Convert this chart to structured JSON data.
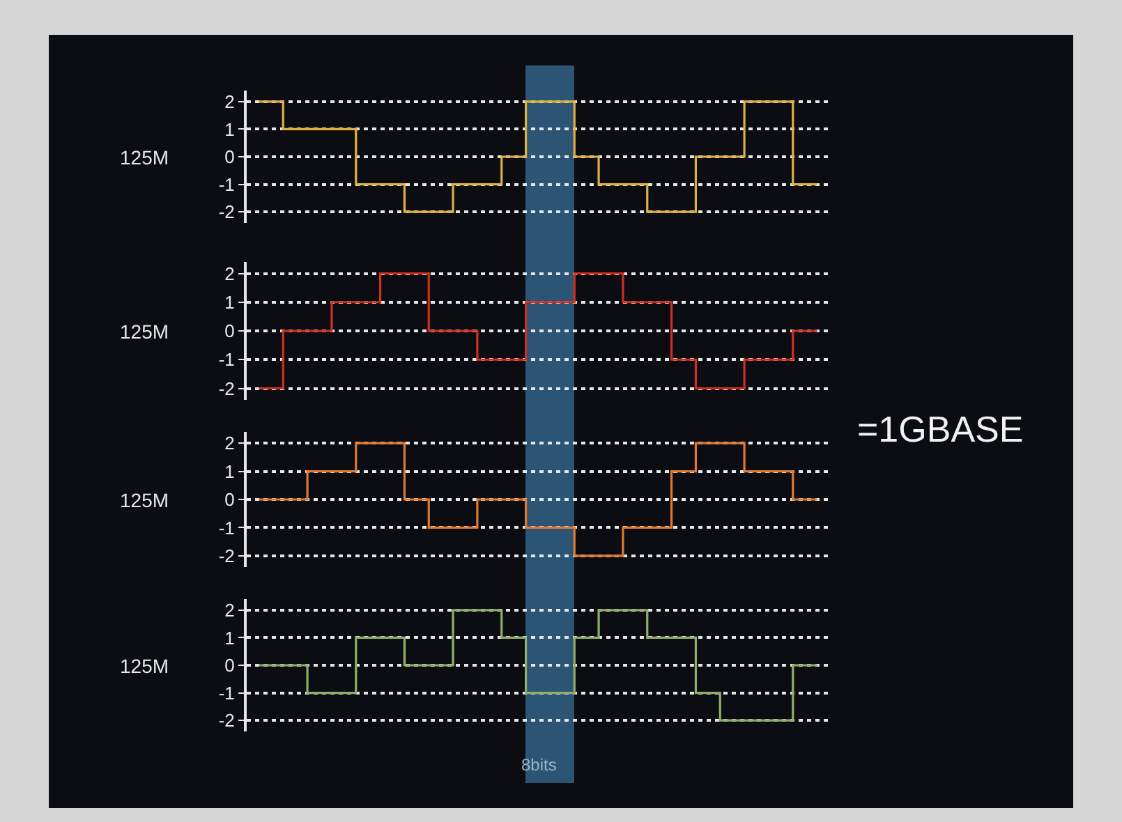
{
  "chart_data": [
    {
      "type": "step",
      "ylabel": "125M",
      "categories": [
        null,
        null,
        null,
        null,
        null,
        null,
        null,
        null,
        null,
        null,
        null,
        null,
        null,
        null,
        null,
        null,
        null,
        null,
        null,
        null,
        null,
        null,
        null,
        null
      ],
      "ylim": [
        -2.4,
        2.4
      ],
      "yticks": [
        2,
        1,
        0,
        -1,
        -2
      ],
      "grid": "y",
      "tick_labels": "y",
      "series": [
        {
          "color": "#e0b040",
          "values": [
            2,
            1,
            1,
            1,
            -1,
            -1,
            -2,
            -2,
            -1,
            -1,
            0,
            2,
            2,
            0,
            -1,
            -1,
            -2,
            -2,
            0,
            0,
            2,
            2,
            -1,
            -1
          ]
        }
      ]
    },
    {
      "type": "step",
      "ylabel": "125M",
      "categories": [
        null,
        null,
        null,
        null,
        null,
        null,
        null,
        null,
        null,
        null,
        null,
        null,
        null,
        null,
        null,
        null,
        null,
        null,
        null,
        null,
        null,
        null,
        null,
        null
      ],
      "ylim": [
        -2.4,
        2.4
      ],
      "yticks": [
        2,
        1,
        0,
        -1,
        -2
      ],
      "grid": "y",
      "tick_labels": "y",
      "series": [
        {
          "color": "#d03020",
          "values": [
            -2,
            0,
            0,
            1,
            1,
            2,
            2,
            0,
            0,
            -1,
            -1,
            1,
            1,
            2,
            2,
            1,
            1,
            -1,
            -2,
            -2,
            -1,
            -1,
            0,
            0
          ]
        }
      ]
    },
    {
      "type": "step",
      "ylabel": "125M",
      "annotations": [
        "=1GBASE"
      ],
      "categories": [
        null,
        null,
        null,
        null,
        null,
        null,
        null,
        null,
        null,
        null,
        null,
        null,
        null,
        null,
        null,
        null,
        null,
        null,
        null,
        null,
        null,
        null,
        null,
        null
      ],
      "ylim": [
        -2.4,
        2.4
      ],
      "yticks": [
        2,
        1,
        0,
        -1,
        -2
      ],
      "grid": "y",
      "tick_labels": "y",
      "series": [
        {
          "color": "#e07a30",
          "values": [
            0,
            0,
            1,
            1,
            2,
            2,
            0,
            -1,
            -1,
            0,
            0,
            -1,
            -1,
            -2,
            -2,
            -1,
            -1,
            1,
            2,
            2,
            1,
            1,
            0,
            0
          ]
        }
      ]
    },
    {
      "type": "step",
      "ylabel": "125M",
      "annotations": [
        "8bits"
      ],
      "categories": [
        null,
        null,
        null,
        null,
        null,
        null,
        null,
        null,
        null,
        null,
        null,
        null,
        null,
        null,
        null,
        null,
        null,
        null,
        null,
        null,
        null,
        null,
        null,
        null
      ],
      "ylim": [
        -2.4,
        2.4
      ],
      "yticks": [
        2,
        1,
        0,
        -1,
        -2
      ],
      "grid": "y",
      "tick_labels": "y",
      "series": [
        {
          "color": "#8fae6a",
          "values": [
            0,
            0,
            -1,
            -1,
            1,
            1,
            0,
            0,
            2,
            2,
            1,
            -1,
            -1,
            1,
            2,
            2,
            1,
            1,
            -1,
            -2,
            -2,
            -2,
            0,
            0
          ]
        }
      ]
    }
  ]
}
